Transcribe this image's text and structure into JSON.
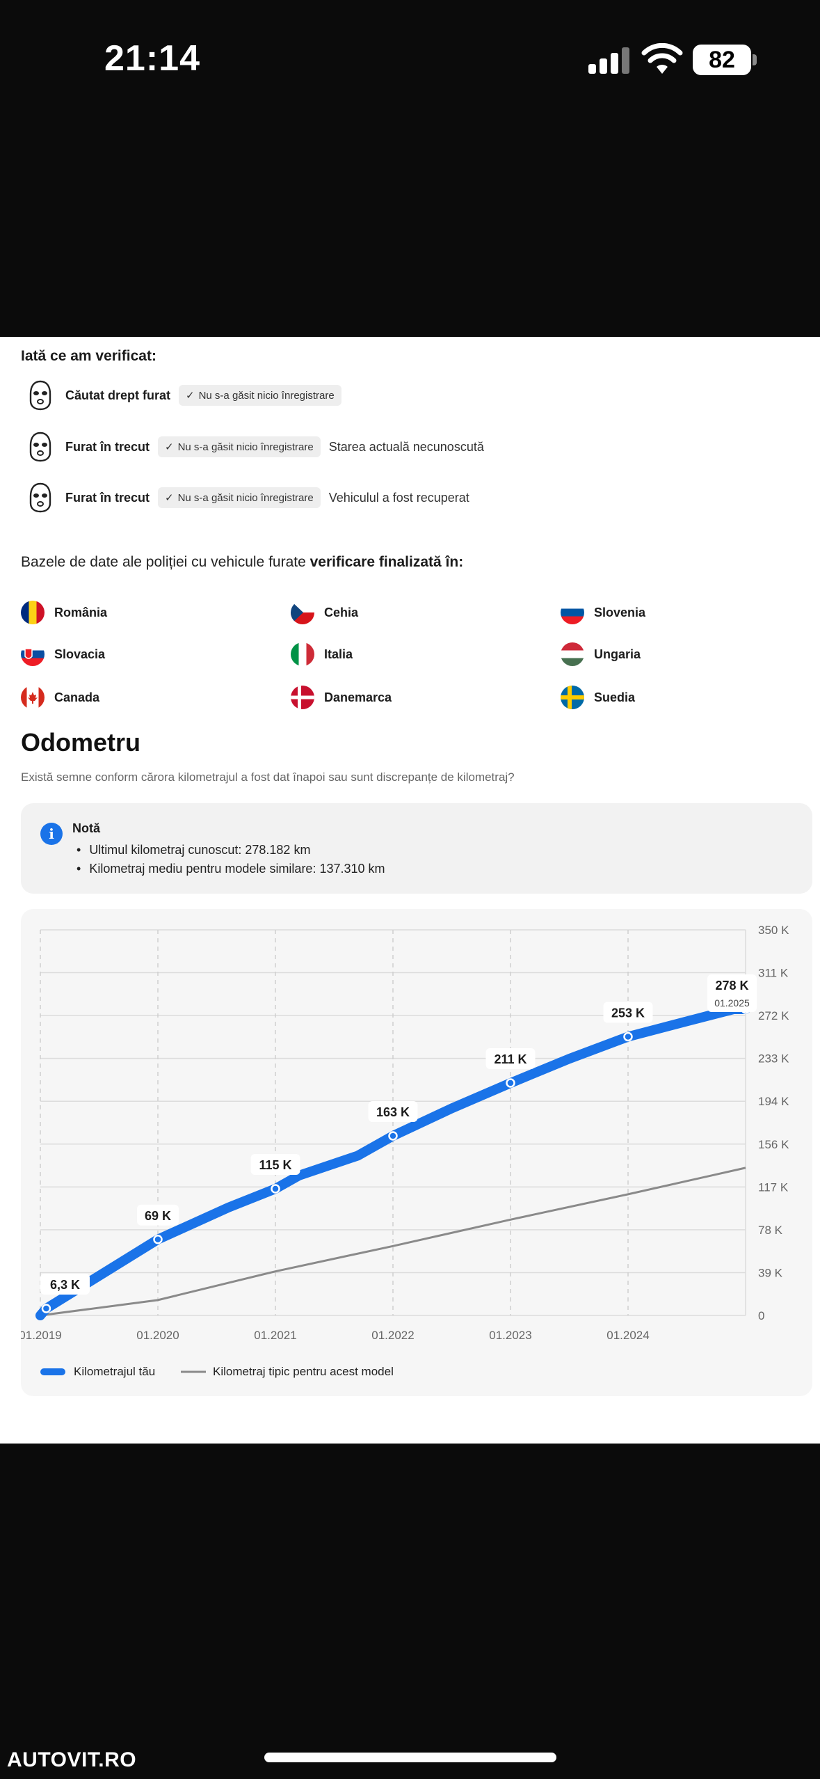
{
  "status_bar": {
    "time": "21:14",
    "battery": "82"
  },
  "checks": {
    "title": "Iată ce am verificat:",
    "rows": [
      {
        "label": "Căutat drept furat",
        "chip": "Nu s-a găsit nicio înregistrare",
        "extra": ""
      },
      {
        "label": "Furat în trecut",
        "chip": "Nu s-a găsit nicio înregistrare",
        "extra": "Starea actuală necunoscută"
      },
      {
        "label": "Furat în trecut",
        "chip": "Nu s-a găsit nicio înregistrare",
        "extra": "Vehiculul a fost recuperat"
      }
    ]
  },
  "databases": {
    "title_plain": "Bazele de date ale poliției cu vehicule furate ",
    "title_bold": "verificare finalizată în:",
    "countries": [
      "România",
      "Cehia",
      "Slovenia",
      "Slovacia",
      "Italia",
      "Ungaria",
      "Canada",
      "Danemarca",
      "Suedia"
    ]
  },
  "odometer": {
    "title": "Odometru",
    "subtitle": "Există semne conform cărora kilometrajul a fost dat înapoi sau sunt discrepanțe de kilometraj?",
    "note_title": "Notă",
    "note_items": [
      "Ultimul kilometraj cunoscut: 278.182 km",
      "Kilometraj mediu pentru modele similare: 137.310 km"
    ]
  },
  "chart_data": {
    "type": "line",
    "x_tick_labels": [
      "01.2019",
      "01.2020",
      "01.2021",
      "01.2022",
      "01.2023",
      "01.2024"
    ],
    "y_tick_labels": [
      "0",
      "39 K",
      "78 K",
      "117 K",
      "156 K",
      "194 K",
      "233 K",
      "272 K",
      "311 K",
      "350 K"
    ],
    "ylim": [
      0,
      350
    ],
    "xlim": [
      2019.0,
      2025.0
    ],
    "grid": true,
    "legend_position": "bottom-left",
    "series": [
      {
        "name": "Kilometrajul tău",
        "color": "#1a73e8",
        "x": [
          2019.0,
          2019.05,
          2020.0,
          2020.6,
          2021.0,
          2021.2,
          2021.7,
          2022.0,
          2022.5,
          2023.0,
          2023.5,
          2024.0,
          2024.5,
          2024.9,
          2025.0
        ],
        "values": [
          0,
          6.3,
          69,
          98,
          115,
          127,
          145,
          163,
          188,
          211,
          233,
          253,
          267,
          278,
          278
        ],
        "labeled_points": [
          {
            "x": 2019.05,
            "value": 6.3,
            "label": "6,3 K"
          },
          {
            "x": 2020.0,
            "value": 69,
            "label": "69 K"
          },
          {
            "x": 2021.0,
            "value": 115,
            "label": "115 K"
          },
          {
            "x": 2022.0,
            "value": 163,
            "label": "163 K"
          },
          {
            "x": 2023.0,
            "value": 211,
            "label": "211 K"
          },
          {
            "x": 2024.0,
            "value": 253,
            "label": "253 K"
          },
          {
            "x": 2025.0,
            "value": 278,
            "label": "278 K",
            "sublabel": "01.2025"
          }
        ]
      },
      {
        "name": "Kilometraj tipic pentru acest model",
        "color": "#8a8a8a",
        "x": [
          2019.0,
          2020.0,
          2021.0,
          2022.0,
          2023.0,
          2024.0,
          2025.0
        ],
        "values": [
          0,
          14,
          40,
          63,
          87,
          110,
          134
        ]
      }
    ]
  },
  "footer": {
    "watermark": "AUTOVIT.RO"
  }
}
